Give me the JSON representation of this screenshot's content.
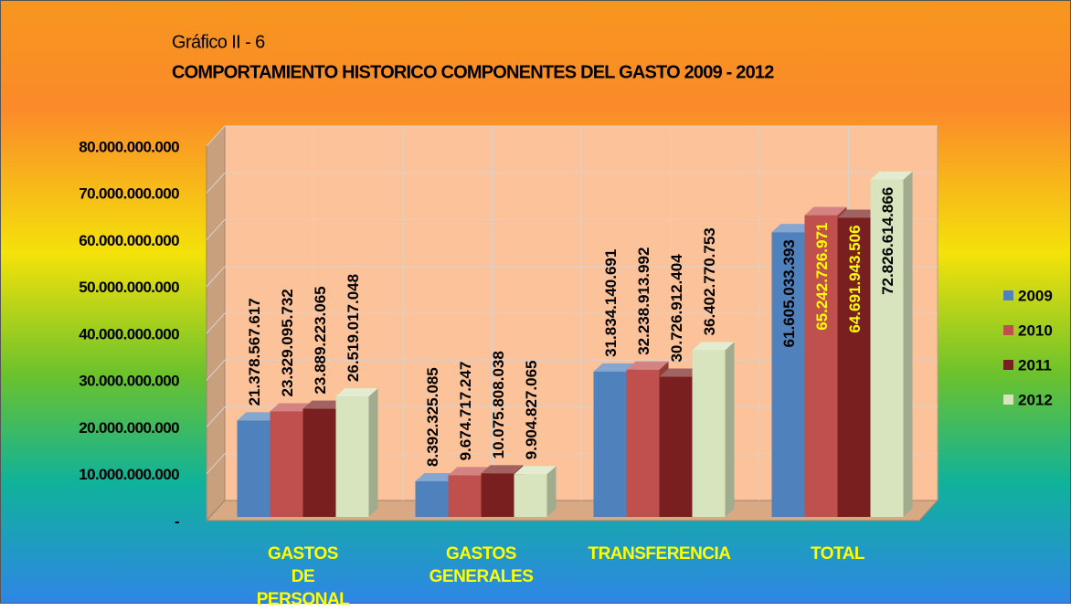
{
  "chart_data": {
    "type": "bar",
    "subtitle": "Gráfico II - 6",
    "title": "COMPORTAMIENTO  HISTORICO COMPONENTES DEL GASTO 2009 - 2012",
    "categories": [
      "GASTOS DE PERSONAL",
      "GASTOS GENERALES",
      "TRANSFERENCIA",
      "TOTAL"
    ],
    "series": [
      {
        "name": "2009",
        "color": "#4f81bd",
        "label_color": "#000000",
        "values": [
          21378567617,
          8392325085,
          31834140691,
          61605033393
        ],
        "value_labels": [
          "21.378.567.617",
          "8.392.325.085",
          "31.834.140.691",
          "61.605.033.393"
        ]
      },
      {
        "name": "2010",
        "color": "#c0504d",
        "label_color": "#ffff00",
        "values": [
          23329095732,
          9674717247,
          32238913992,
          65242726971
        ],
        "value_labels": [
          "23.329.095.732",
          "9.674.717.247",
          "32.238.913.992",
          "65.242.726.971"
        ]
      },
      {
        "name": "2011",
        "color": "#7a1f1f",
        "label_color": "#ffff00",
        "values": [
          23889223065,
          10075808038,
          30726912404,
          64691943506
        ],
        "value_labels": [
          "23.889.223.065",
          "10.075.808.038",
          "30.726.912.404",
          "64.691.943.506"
        ]
      },
      {
        "name": "2012",
        "color": "#d7e4bd",
        "label_color": "#000000",
        "values": [
          26519017048,
          9904827065,
          36402770753,
          72826614866
        ],
        "value_labels": [
          "26.519.017.048",
          "9.904.827.065",
          "36.402.770.753",
          "72.826.614.866"
        ]
      }
    ],
    "ylim": [
      0,
      80000000000
    ],
    "yticks": [
      {
        "value": 0,
        "label": "-"
      },
      {
        "value": 10000000000,
        "label": "10.000.000.000"
      },
      {
        "value": 20000000000,
        "label": "20.000.000.000"
      },
      {
        "value": 30000000000,
        "label": "30.000.000.000"
      },
      {
        "value": 40000000000,
        "label": "40.000.000.000"
      },
      {
        "value": 50000000000,
        "label": "50.000.000.000"
      },
      {
        "value": 60000000000,
        "label": "60.000.000.000"
      },
      {
        "value": 70000000000,
        "label": "70.000.000.000"
      },
      {
        "value": 80000000000,
        "label": "80.000.000.000"
      }
    ],
    "grid": true,
    "legend": "right"
  }
}
